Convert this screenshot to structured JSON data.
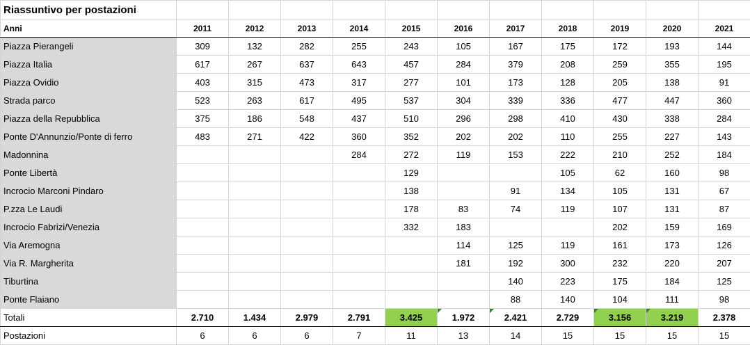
{
  "title": "Riassuntivo per postazioni",
  "header": {
    "label": "Anni",
    "years": [
      "2011",
      "2012",
      "2013",
      "2014",
      "2015",
      "2016",
      "2017",
      "2018",
      "2019",
      "2020",
      "2021"
    ]
  },
  "rows": [
    {
      "name": "Piazza Pierangeli",
      "values": [
        "309",
        "132",
        "282",
        "255",
        "243",
        "105",
        "167",
        "175",
        "172",
        "193",
        "144"
      ]
    },
    {
      "name": "Piazza Italia",
      "values": [
        "617",
        "267",
        "637",
        "643",
        "457",
        "284",
        "379",
        "208",
        "259",
        "355",
        "195"
      ]
    },
    {
      "name": "Piazza Ovidio",
      "values": [
        "403",
        "315",
        "473",
        "317",
        "277",
        "101",
        "173",
        "128",
        "205",
        "138",
        "91"
      ]
    },
    {
      "name": "Strada parco",
      "values": [
        "523",
        "263",
        "617",
        "495",
        "537",
        "304",
        "339",
        "336",
        "477",
        "447",
        "360"
      ]
    },
    {
      "name": "Piazza della Repubblica",
      "values": [
        "375",
        "186",
        "548",
        "437",
        "510",
        "296",
        "298",
        "410",
        "430",
        "338",
        "284"
      ]
    },
    {
      "name": "Ponte D'Annunzio/Ponte di ferro",
      "values": [
        "483",
        "271",
        "422",
        "360",
        "352",
        "202",
        "202",
        "110",
        "255",
        "227",
        "143"
      ]
    },
    {
      "name": "Madonnina",
      "values": [
        "",
        "",
        "",
        "284",
        "272",
        "119",
        "153",
        "222",
        "210",
        "252",
        "184"
      ]
    },
    {
      "name": "Ponte Libertà",
      "values": [
        "",
        "",
        "",
        "",
        "129",
        "",
        "",
        "105",
        "62",
        "160",
        "98"
      ]
    },
    {
      "name": "Incrocio Marconi Pindaro",
      "values": [
        "",
        "",
        "",
        "",
        "138",
        "",
        "91",
        "134",
        "105",
        "131",
        "67"
      ]
    },
    {
      "name": "P.zza Le Laudi",
      "values": [
        "",
        "",
        "",
        "",
        "178",
        "83",
        "74",
        "119",
        "107",
        "131",
        "87"
      ]
    },
    {
      "name": "Incrocio Fabrizi/Venezia",
      "values": [
        "",
        "",
        "",
        "",
        "332",
        "183",
        "",
        "",
        "202",
        "159",
        "169"
      ]
    },
    {
      "name": "Via Aremogna",
      "values": [
        "",
        "",
        "",
        "",
        "",
        "114",
        "125",
        "119",
        "161",
        "173",
        "126"
      ]
    },
    {
      "name": "Via R. Margherita",
      "values": [
        "",
        "",
        "",
        "",
        "",
        "181",
        "192",
        "300",
        "232",
        "220",
        "207"
      ]
    },
    {
      "name": "Tiburtina",
      "values": [
        "",
        "",
        "",
        "",
        "",
        "",
        "140",
        "223",
        "175",
        "184",
        "125"
      ]
    },
    {
      "name": "Ponte Flaiano",
      "values": [
        "",
        "",
        "",
        "",
        "",
        "",
        "88",
        "140",
        "104",
        "111",
        "98"
      ]
    }
  ],
  "totals": {
    "label": "Totali",
    "values": [
      "2.710",
      "1.434",
      "2.979",
      "2.791",
      "3.425",
      "1.972",
      "2.421",
      "2.729",
      "3.156",
      "3.219",
      "2.378"
    ],
    "highlight": [
      false,
      false,
      false,
      false,
      true,
      false,
      false,
      false,
      true,
      true,
      false
    ],
    "marked": [
      false,
      false,
      false,
      false,
      false,
      true,
      true,
      false,
      true,
      true,
      false
    ]
  },
  "postazioni": {
    "label": "Postazioni",
    "values": [
      "6",
      "6",
      "6",
      "7",
      "11",
      "13",
      "14",
      "15",
      "15",
      "15",
      "15"
    ]
  },
  "colors": {
    "label_bg": "#d9d9d9",
    "highlight_green": "#92d050",
    "marker_green": "#2e7d32",
    "gridline": "#d4d4d4"
  }
}
